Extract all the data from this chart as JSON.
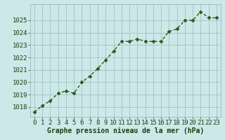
{
  "x": [
    0,
    1,
    2,
    3,
    4,
    5,
    6,
    7,
    8,
    9,
    10,
    11,
    12,
    13,
    14,
    15,
    16,
    17,
    18,
    19,
    20,
    21,
    22,
    23
  ],
  "y": [
    1017.6,
    1018.1,
    1018.5,
    1019.1,
    1019.3,
    1019.1,
    1020.0,
    1020.5,
    1021.1,
    1021.8,
    1022.5,
    1023.3,
    1023.3,
    1023.5,
    1023.3,
    1023.3,
    1023.3,
    1024.1,
    1024.3,
    1025.0,
    1025.0,
    1025.7,
    1025.2,
    1025.2
  ],
  "line_color": "#2d5a1b",
  "marker": "D",
  "marker_size": 2.5,
  "line_width": 1.0,
  "bg_color": "#cce8e8",
  "plot_bg_color": "#cce8e8",
  "grid_color": "#99bbbb",
  "ylabel_ticks": [
    1018,
    1019,
    1020,
    1021,
    1022,
    1023,
    1024,
    1025
  ],
  "ylim": [
    1017.2,
    1026.3
  ],
  "xlim": [
    -0.5,
    23.5
  ],
  "xticks": [
    0,
    1,
    2,
    3,
    4,
    5,
    6,
    7,
    8,
    9,
    10,
    11,
    12,
    13,
    14,
    15,
    16,
    17,
    18,
    19,
    20,
    21,
    22,
    23
  ],
  "xlabel": "Graphe pression niveau de la mer (hPa)",
  "xlabel_color": "#1a4010",
  "xlabel_fontsize": 7,
  "tick_fontsize": 6.5,
  "tick_color": "#1a4010",
  "frame_color": "#99bbbb"
}
